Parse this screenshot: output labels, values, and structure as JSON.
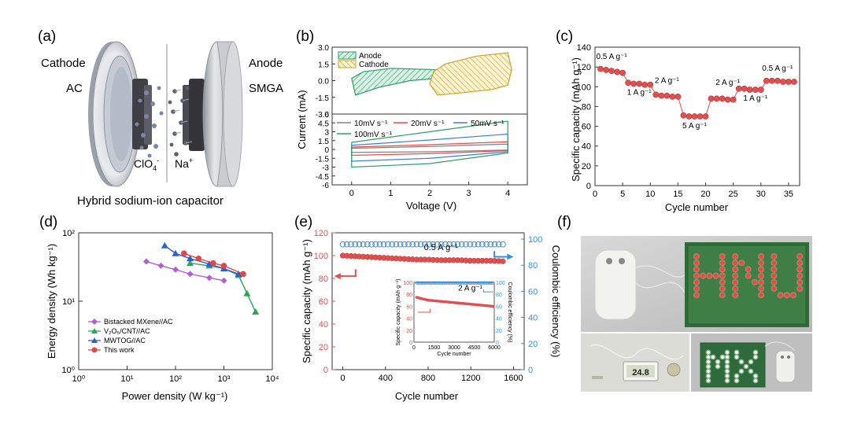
{
  "panels": {
    "a": {
      "letter": "(a)",
      "cathode": "Cathode",
      "ac": "AC",
      "anode": "Anode",
      "smga": "SMGA",
      "clo4": "ClO",
      "clo4_sub": "4",
      "clo4_sup": "-",
      "na": "Na",
      "na_sup": "+",
      "caption": "Hybrid sodium-ion capacitor"
    },
    "b": {
      "letter": "(b)",
      "ylabel": "Current (mA)",
      "xlabel": "Voltage (V)",
      "legend_top": [
        "Anode",
        "Cathode"
      ],
      "legend_bottom": [
        "10mV s⁻¹",
        "20mV s⁻¹",
        "50mV s⁻¹",
        "100mV s⁻¹"
      ],
      "colors": {
        "anode": "#2e9e6b",
        "cathode": "#c9a227",
        "s10": "#808080",
        "s20": "#e05050",
        "s50": "#3b7fd6",
        "s100": "#2e9e6b"
      }
    },
    "c": {
      "letter": "(c)",
      "ylabel": "Specific capacity (mAh g⁻¹)",
      "xlabel": "Cycle number",
      "rate_labels": [
        "0.5 A g⁻¹",
        "1 A g⁻¹",
        "2 A g⁻¹",
        "5 A g⁻¹",
        "2 A g⁻¹",
        "1 A g⁻¹",
        "0.5 A g⁻¹"
      ],
      "color": "#e05050"
    },
    "d": {
      "letter": "(d)",
      "ylabel": "Energy density (Wh kg⁻¹)",
      "xlabel": "Power density (W kg⁻¹)",
      "legend": [
        "Bistacked MXene//AC",
        "V₂O₅/CNT//AC",
        "MWTOG//AC",
        "This work"
      ],
      "colors": [
        "#b45cd6",
        "#2ea35a",
        "#2b5fd0",
        "#e04848"
      ]
    },
    "e": {
      "letter": "(e)",
      "ylabel_left": "Specific capacity (mAh g⁻¹)",
      "ylabel_right": "Coulombic efficiency (%)",
      "xlabel": "Cycle number",
      "rate": "0.5 A g⁻¹",
      "inset_rate": "2 A g⁻¹",
      "inset_ylabel_left": "Specific capacity (mAh g⁻¹)",
      "inset_ylabel_right": "Coulombic efficiency (%)",
      "inset_xlabel": "Cycle number",
      "colors": {
        "capacity": "#e05050",
        "efficiency": "#3b8fd6"
      }
    },
    "f": {
      "letter": "(f)",
      "led_top": "HNU",
      "led_bottom": "MX",
      "thermometer": "24.8"
    }
  },
  "chart_data": [
    {
      "panel": "b",
      "type": "line",
      "xlabel": "Voltage (V)",
      "ylabel": "Current (mA)",
      "xlim": [
        -0.5,
        4.5
      ],
      "xticks": [
        0,
        1,
        2,
        3,
        4
      ],
      "subplots": [
        {
          "position": "top",
          "ylim": [
            -3.0,
            3.0
          ],
          "yticks": [
            -3.0,
            -1.5,
            0.0,
            1.5,
            3.0
          ],
          "series": [
            {
              "name": "Anode",
              "x": [
                0.0,
                0.3,
                1.0,
                2.0,
                2.9,
                3.1,
                3.0,
                2.5,
                1.5,
                0.7,
                0.1,
                0.0
              ],
              "y": [
                0.2,
                0.8,
                1.1,
                1.0,
                0.8,
                0.5,
                0.4,
                0.3,
                0.0,
                -0.6,
                -1.3,
                0.2
              ]
            },
            {
              "name": "Cathode",
              "x": [
                2.0,
                2.1,
                2.4,
                3.2,
                4.0,
                4.1,
                4.0,
                3.6,
                2.8,
                2.2,
                2.0
              ],
              "y": [
                -0.3,
                0.8,
                1.5,
                2.2,
                2.5,
                1.0,
                -0.4,
                -0.8,
                -1.1,
                -1.3,
                -0.3
              ]
            }
          ]
        },
        {
          "position": "bottom",
          "ylim": [
            -6.0,
            6.0
          ],
          "yticks": [
            -6,
            -4.5,
            -3,
            -1.5,
            0,
            1.5,
            3,
            4.5,
            6
          ],
          "series": [
            {
              "name": "10mV s⁻¹",
              "x": [
                0.0,
                2.0,
                4.0,
                4.0,
                2.0,
                0.0,
                0.0
              ],
              "y": [
                0.2,
                0.5,
                0.9,
                -0.1,
                -0.4,
                -0.5,
                0.2
              ]
            },
            {
              "name": "20mV s⁻¹",
              "x": [
                0.0,
                2.0,
                4.0,
                4.0,
                2.0,
                0.0,
                0.0
              ],
              "y": [
                0.4,
                0.8,
                1.3,
                -0.2,
                -0.7,
                -1.0,
                0.4
              ]
            },
            {
              "name": "50mV s⁻¹",
              "x": [
                0.0,
                2.0,
                4.0,
                4.0,
                2.0,
                0.0,
                0.0
              ],
              "y": [
                0.7,
                1.6,
                2.6,
                -0.4,
                -1.5,
                -2.0,
                0.7
              ]
            },
            {
              "name": "100mV s⁻¹",
              "x": [
                0.0,
                2.0,
                4.0,
                4.0,
                2.0,
                0.0,
                0.0
              ],
              "y": [
                1.2,
                3.0,
                4.8,
                -0.6,
                -2.4,
                -3.0,
                1.2
              ]
            }
          ]
        }
      ]
    },
    {
      "panel": "c",
      "type": "scatter",
      "xlabel": "Cycle number",
      "ylabel": "Specific capacity (mAh g⁻¹)",
      "xlim": [
        0,
        37
      ],
      "ylim": [
        0,
        140
      ],
      "xticks": [
        0,
        5,
        10,
        15,
        20,
        25,
        30,
        35
      ],
      "yticks": [
        0,
        20,
        40,
        60,
        80,
        100,
        120,
        140
      ],
      "x": [
        1,
        2,
        3,
        4,
        5,
        6,
        7,
        8,
        9,
        10,
        11,
        12,
        13,
        14,
        15,
        16,
        17,
        18,
        19,
        20,
        21,
        22,
        23,
        24,
        25,
        26,
        27,
        28,
        29,
        30,
        31,
        32,
        33,
        34,
        35,
        36
      ],
      "y": [
        118,
        117,
        116,
        115,
        114,
        104,
        103,
        103,
        102,
        102,
        92,
        91,
        91,
        90,
        90,
        71,
        70,
        70,
        70,
        70,
        88,
        88,
        88,
        87,
        87,
        98,
        98,
        97,
        97,
        97,
        106,
        106,
        106,
        105,
        105,
        105
      ]
    },
    {
      "panel": "d",
      "type": "line",
      "xlabel": "Power density (W kg⁻¹)",
      "ylabel": "Energy density (Wh kg⁻¹)",
      "xscale": "log",
      "yscale": "log",
      "xlim": [
        1,
        10000
      ],
      "ylim": [
        1,
        100
      ],
      "series": [
        {
          "name": "Bistacked MXene//AC",
          "x": [
            25,
            50,
            100,
            200,
            500,
            1000
          ],
          "y": [
            38,
            33,
            29,
            25,
            22,
            20
          ]
        },
        {
          "name": "V₂O₅/CNT//AC",
          "x": [
            200,
            500,
            1000,
            2000,
            3000,
            4500
          ],
          "y": [
            36,
            33,
            30,
            24,
            13,
            7
          ]
        },
        {
          "name": "MWTOG//AC",
          "x": [
            60,
            100,
            200,
            500,
            1000,
            2000
          ],
          "y": [
            65,
            50,
            42,
            35,
            30,
            25
          ]
        },
        {
          "name": "This work",
          "x": [
            150,
            300,
            600,
            1000,
            2500
          ],
          "y": [
            50,
            42,
            36,
            33,
            25
          ]
        }
      ]
    },
    {
      "panel": "e",
      "type": "scatter",
      "xlabel": "Cycle number",
      "xlim": [
        -100,
        1700
      ],
      "xticks": [
        0,
        400,
        800,
        1200,
        1600
      ],
      "ylim_left": [
        0,
        120
      ],
      "ylim_right": [
        0,
        100
      ],
      "series": [
        {
          "name": "Specific capacity",
          "axis": "left",
          "x_start": 0,
          "x_end": 1500,
          "y": [
            100,
            99.5,
            99,
            98.5,
            98,
            97.5,
            97,
            96.5,
            96.5,
            96,
            96,
            96,
            95.5,
            95.5,
            95.5,
            95
          ]
        },
        {
          "name": "Coulombic efficiency",
          "axis": "right",
          "x_start": 0,
          "x_end": 1500,
          "y": [
            96,
            96,
            96,
            96,
            96,
            96,
            96,
            96,
            96,
            96,
            96,
            96,
            96,
            96,
            96,
            96
          ]
        }
      ],
      "inset": {
        "xlim": [
          0,
          6000
        ],
        "xticks": [
          0,
          1500,
          3000,
          4500,
          6000
        ],
        "ylim_left": [
          0,
          100
        ],
        "yticks_left": [
          0,
          20,
          40,
          60,
          80,
          100
        ],
        "ylim_right": [
          0,
          100
        ],
        "yticks_right": [
          0,
          20,
          40,
          60,
          80,
          100
        ],
        "capacity": [
          75,
          72,
          70,
          69,
          68,
          67,
          66,
          65,
          64,
          63,
          62,
          61,
          60
        ],
        "efficiency": [
          99,
          99,
          99,
          99,
          99,
          99,
          99,
          99,
          99,
          99,
          99,
          99,
          99
        ]
      }
    }
  ]
}
